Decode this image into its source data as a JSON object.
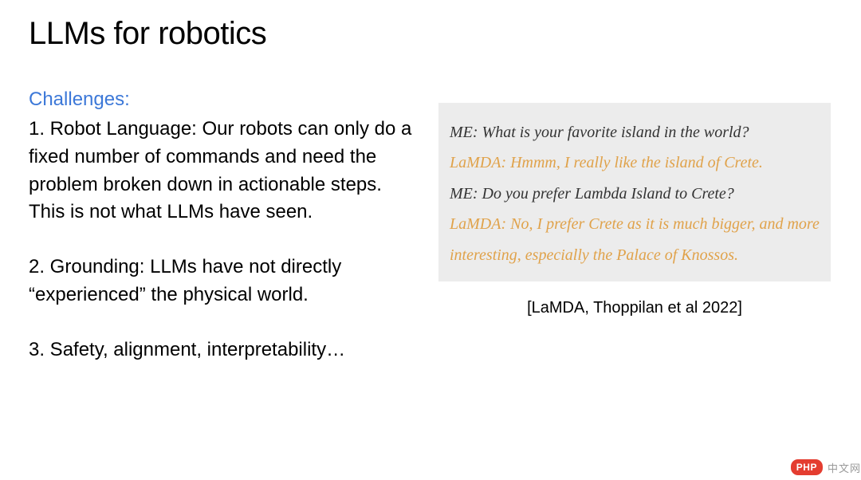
{
  "title": "LLMs for robotics",
  "subhead": "Challenges:",
  "challenges": {
    "c1": "1. Robot Language: Our robots can only do a fixed number of commands and need the problem broken down in actionable steps. This is not what LLMs have seen.",
    "c2": "2. Grounding: LLMs have not directly “experienced” the physical world.",
    "c3": "3. Safety, alignment, interpretability…"
  },
  "transcript": {
    "l1": "ME: What is your favorite island in the world?",
    "l2": "LaMDA: Hmmm, I really like the island of Crete.",
    "l3": "ME: Do you prefer Lambda Island to Crete?",
    "l4": "LaMDA: No, I prefer Crete as it is much bigger, and more interesting, especially the Palace of Knossos."
  },
  "citation": "[LaMDA, Thoppilan et al 2022]",
  "watermark": {
    "badge": "PHP",
    "text": "中文网"
  },
  "colors": {
    "subhead": "#3c78d8",
    "bot": "#e0a24a",
    "me": "#333333",
    "transcript_bg": "#ececec",
    "badge_bg": "#e43d30"
  },
  "fontsizes": {
    "title": 40,
    "body": 24,
    "transcript": 20,
    "citation": 20
  }
}
